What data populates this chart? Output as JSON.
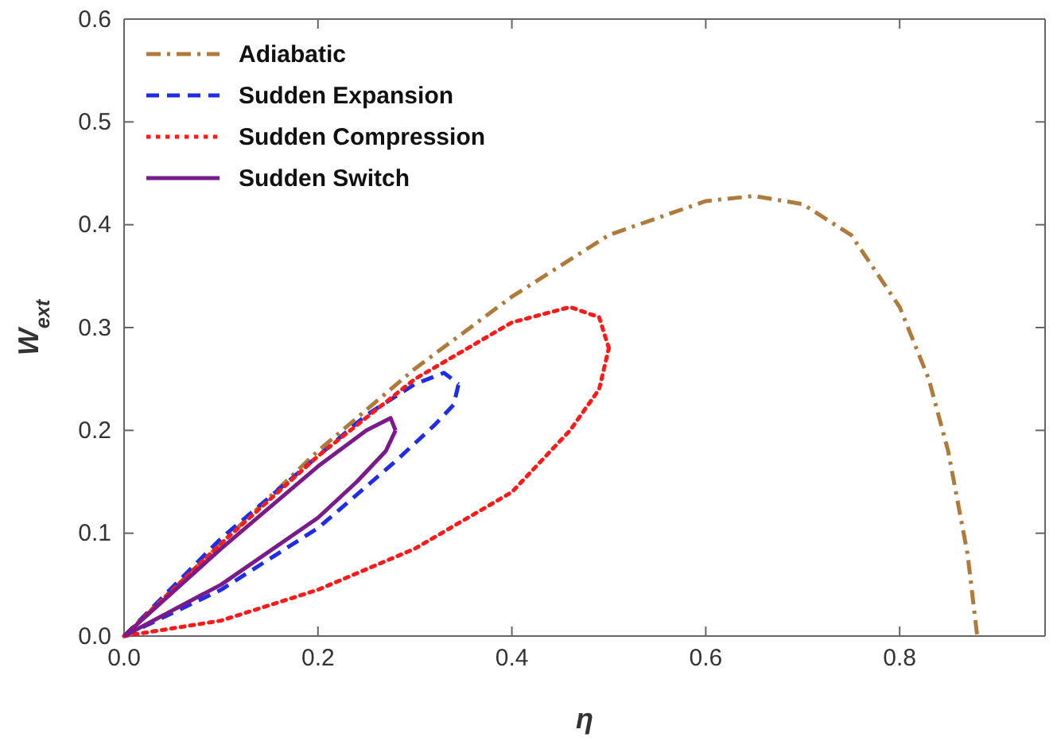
{
  "chart_data": {
    "type": "line",
    "xlabel": "η",
    "ylabel": "W$_{ext}$",
    "legend": "top left",
    "grid": false,
    "xlim": [
      0,
      0.95
    ],
    "ylim": [
      0,
      0.6
    ],
    "xticks": [
      {
        "value": 0,
        "label": "0.0"
      },
      {
        "value": 0.2,
        "label": "0.2"
      },
      {
        "value": 0.4,
        "label": "0.4"
      },
      {
        "value": 0.6,
        "label": "0.6"
      },
      {
        "value": 0.8,
        "label": "0.8"
      }
    ],
    "yticks": [
      {
        "value": 0,
        "label": "0.0"
      },
      {
        "value": 0.1,
        "label": "0.1"
      },
      {
        "value": 0.2,
        "label": "0.2"
      },
      {
        "value": 0.3,
        "label": "0.3"
      },
      {
        "value": 0.4,
        "label": "0.4"
      },
      {
        "value": 0.5,
        "label": "0.5"
      },
      {
        "value": 0.6,
        "label": "0.6"
      }
    ],
    "series": [
      {
        "name": "Adiabatic",
        "color": "#b07a3a",
        "line_style": "dashdot",
        "x": [
          0,
          0.1,
          0.2,
          0.3,
          0.4,
          0.5,
          0.6,
          0.65,
          0.7,
          0.75,
          0.8,
          0.83,
          0.85,
          0.87,
          0.88
        ],
        "values": [
          0,
          0.09,
          0.18,
          0.26,
          0.33,
          0.39,
          0.423,
          0.428,
          0.42,
          0.39,
          0.32,
          0.25,
          0.18,
          0.08,
          0
        ]
      },
      {
        "name": "Sudden Expansion",
        "color": "#1f2de8",
        "line_style": "dashed",
        "x": [
          0,
          0.1,
          0.2,
          0.25,
          0.3,
          0.33,
          0.345
        ],
        "values": [
          0,
          0.095,
          0.175,
          0.215,
          0.245,
          0.256,
          0.245
        ]
      },
      {
        "color": "#1f2de8",
        "line_style": "dashed",
        "x": [
          0,
          0.1,
          0.2,
          0.28,
          0.32,
          0.34,
          0.345
        ],
        "values": [
          0,
          0.045,
          0.105,
          0.17,
          0.205,
          0.225,
          0.245
        ]
      },
      {
        "name": "Sudden Compression",
        "color": "#ff1a1a",
        "line_style": "dotted",
        "x": [
          0,
          0.1,
          0.2,
          0.3,
          0.4,
          0.46,
          0.49,
          0.5
        ],
        "values": [
          0,
          0.09,
          0.175,
          0.25,
          0.305,
          0.32,
          0.31,
          0.28
        ]
      },
      {
        "color": "#ff1a1a",
        "line_style": "dotted",
        "x": [
          0,
          0.1,
          0.2,
          0.3,
          0.4,
          0.46,
          0.49,
          0.5
        ],
        "values": [
          0,
          0.015,
          0.045,
          0.085,
          0.14,
          0.2,
          0.24,
          0.28
        ]
      },
      {
        "name": "Sudden Switch",
        "color": "#7b1a8a",
        "line_style": "solid",
        "x": [
          0,
          0.1,
          0.2,
          0.25,
          0.275,
          0.28
        ],
        "values": [
          0,
          0.085,
          0.165,
          0.2,
          0.212,
          0.2
        ]
      },
      {
        "color": "#7b1a8a",
        "line_style": "solid",
        "x": [
          0,
          0.1,
          0.2,
          0.24,
          0.27,
          0.28
        ],
        "values": [
          0,
          0.05,
          0.115,
          0.15,
          0.18,
          0.2
        ]
      }
    ]
  }
}
